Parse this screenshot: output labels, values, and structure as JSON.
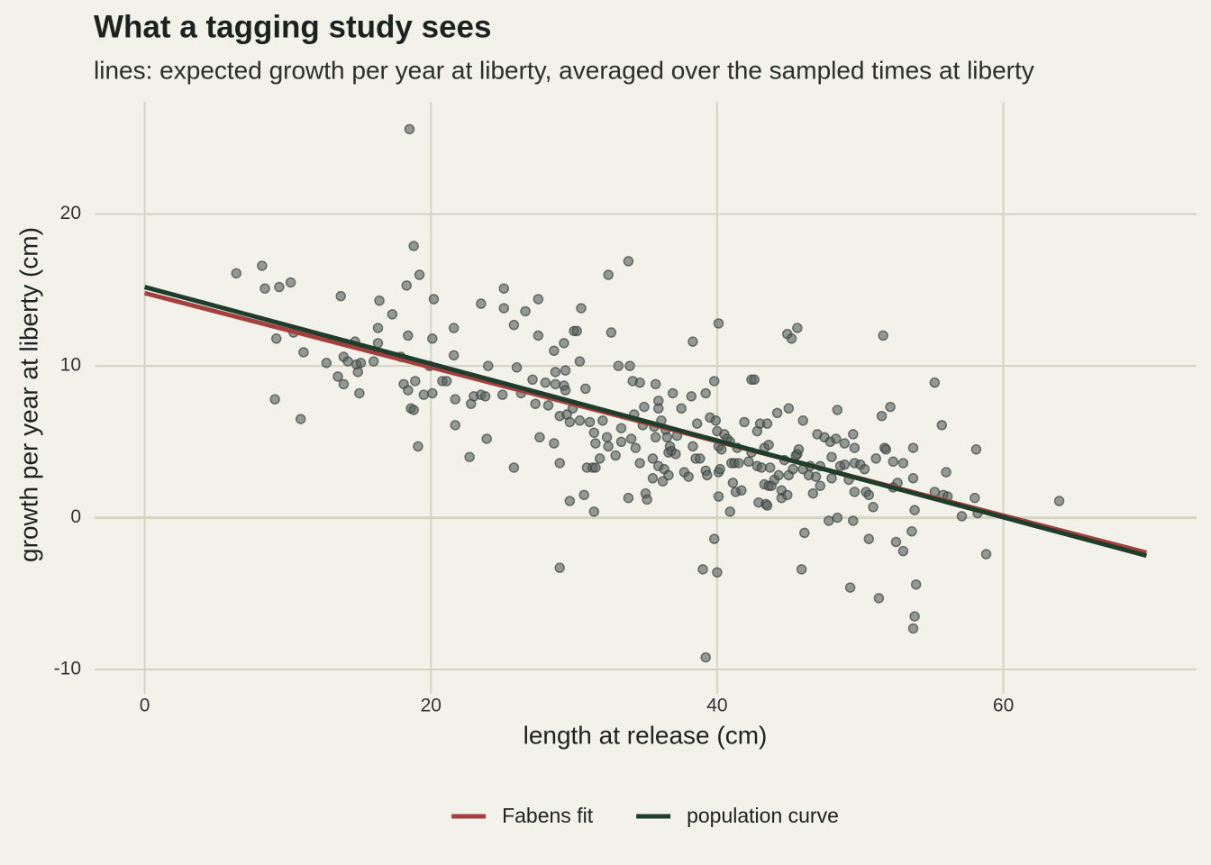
{
  "chart_data": {
    "type": "scatter",
    "title": "What a tagging study sees",
    "subtitle": "lines: expected growth per year at liberty, averaged over the sampled times at liberty",
    "x_label": "length at release (cm)",
    "y_label": "growth per year at liberty (cm)",
    "xlim": [
      -3.5,
      73.5
    ],
    "ylim": [
      -11.6,
      27.4
    ],
    "xticks": [
      0,
      20,
      40,
      60
    ],
    "yticks": [
      -10,
      0,
      10,
      20
    ],
    "grid": true,
    "legend": "bottom",
    "point_color": "#555f58",
    "x": [
      6.4,
      8.2,
      8.4,
      9.4,
      10.2,
      9.2,
      9.1,
      10.4,
      11.1,
      10.9,
      12.7,
      13.7,
      13.9,
      13.5,
      13.9,
      14.2,
      14.7,
      14.8,
      14.9,
      15.1,
      15.0,
      16.0,
      16.3,
      16.3,
      16.4,
      17.3,
      17.9,
      18.1,
      18.3,
      18.4,
      18.4,
      18.5,
      18.8,
      18.6,
      18.8,
      18.9,
      19.1,
      19.2,
      19.5,
      19.9,
      20.1,
      20.2,
      20.1,
      20.8,
      21.1,
      21.6,
      21.6,
      21.7,
      21.7,
      22.7,
      22.8,
      23.0,
      23.5,
      23.5,
      23.8,
      24.0,
      23.9,
      25.0,
      25.1,
      25.1,
      25.8,
      25.8,
      26.0,
      26.3,
      26.6,
      27.1,
      27.3,
      27.5,
      27.5,
      27.6,
      28.0,
      28.2,
      28.6,
      28.7,
      28.7,
      28.6,
      29.0,
      29.0,
      29.0,
      29.3,
      29.4,
      29.3,
      29.4,
      29.5,
      29.7,
      30.0,
      29.9,
      30.2,
      30.4,
      30.4,
      30.5,
      29.7,
      30.7,
      30.8,
      31.1,
      30.9,
      31.3,
      31.5,
      31.4,
      31.5,
      31.4,
      31.8,
      32.0,
      32.3,
      32.4,
      32.4,
      32.6,
      32.9,
      33.1,
      33.3,
      33.3,
      33.9,
      33.8,
      33.8,
      34.0,
      34.1,
      34.2,
      34.3,
      34.6,
      34.6,
      34.8,
      34.9,
      35.0,
      35.1,
      35.5,
      35.5,
      35.6,
      35.7,
      35.7,
      35.9,
      35.9,
      35.9,
      36.1,
      36.3,
      36.2,
      36.4,
      36.5,
      36.6,
      36.7,
      36.6,
      36.8,
      36.9,
      37.1,
      37.2,
      37.5,
      37.7,
      38.0,
      38.2,
      38.3,
      38.3,
      38.5,
      38.6,
      38.8,
      39.0,
      39.2,
      39.2,
      39.2,
      39.3,
      39.5,
      39.8,
      39.8,
      39.9,
      40.0,
      40.1,
      40.0,
      40.1,
      40.1,
      40.1,
      40.2,
      40.3,
      40.5,
      40.7,
      40.9,
      40.9,
      41.0,
      41.1,
      41.2,
      41.3,
      41.4,
      41.5,
      41.7,
      41.9,
      42.2,
      42.4,
      42.4,
      42.6,
      42.8,
      42.8,
      42.9,
      43.0,
      43.1,
      43.3,
      43.3,
      43.4,
      43.5,
      43.5,
      43.6,
      43.7,
      43.6,
      43.8,
      44.0,
      44.2,
      44.3,
      44.5,
      44.5,
      44.7,
      44.9,
      44.9,
      45.0,
      45.0,
      45.2,
      45.3,
      45.5,
      45.6,
      45.6,
      45.7,
      45.9,
      46.0,
      46.0,
      46.1,
      46.4,
      46.5,
      46.7,
      46.9,
      47.0,
      47.2,
      47.2,
      47.5,
      47.8,
      47.9,
      48.0,
      48.0,
      48.3,
      48.4,
      48.4,
      48.6,
      48.9,
      48.9,
      49.2,
      49.3,
      49.5,
      49.5,
      49.6,
      49.6,
      49.6,
      50.0,
      50.3,
      50.4,
      50.6,
      50.6,
      50.9,
      51.1,
      51.3,
      51.5,
      51.6,
      51.7,
      51.8,
      52.1,
      52.3,
      52.3,
      52.5,
      52.6,
      53.0,
      53.0,
      53.6,
      53.7,
      53.7,
      53.8,
      53.7,
      53.8,
      53.9,
      55.2,
      55.2,
      55.7,
      55.8,
      56.0,
      56.1,
      57.1,
      58.0,
      58.1,
      58.2,
      58.8,
      63.9
    ],
    "y": [
      16.1,
      16.6,
      15.1,
      15.2,
      15.5,
      11.8,
      7.8,
      12.2,
      10.9,
      6.5,
      10.2,
      14.6,
      10.6,
      9.3,
      8.8,
      10.3,
      11.6,
      10.1,
      9.6,
      10.2,
      8.2,
      10.3,
      12.5,
      11.5,
      14.3,
      13.4,
      10.6,
      8.8,
      15.3,
      12.0,
      8.4,
      25.6,
      17.9,
      7.2,
      7.1,
      9.0,
      4.7,
      16.0,
      8.1,
      10.0,
      11.8,
      14.4,
      8.2,
      9.0,
      9.0,
      12.5,
      10.7,
      7.8,
      6.1,
      4.0,
      7.5,
      8.0,
      14.1,
      8.1,
      8.0,
      10.0,
      5.2,
      8.1,
      15.1,
      13.8,
      12.7,
      3.3,
      9.9,
      8.2,
      13.6,
      9.1,
      7.5,
      14.4,
      12.0,
      5.3,
      8.9,
      7.4,
      11.0,
      9.6,
      8.8,
      4.9,
      6.7,
      3.6,
      -3.3,
      11.5,
      9.7,
      8.7,
      8.4,
      6.8,
      6.3,
      12.3,
      7.2,
      12.3,
      10.3,
      6.4,
      13.8,
      1.1,
      1.5,
      8.5,
      6.3,
      3.3,
      3.3,
      3.3,
      5.6,
      4.9,
      0.4,
      3.9,
      6.4,
      5.3,
      4.7,
      16.0,
      12.2,
      4.1,
      10.0,
      5.9,
      5.0,
      10.0,
      16.9,
      1.3,
      5.2,
      9.0,
      6.8,
      4.6,
      8.9,
      3.6,
      6.1,
      7.3,
      1.6,
      1.2,
      3.9,
      2.6,
      6.0,
      8.8,
      5.3,
      7.7,
      7.2,
      3.4,
      6.4,
      3.2,
      2.4,
      5.8,
      5.3,
      4.3,
      4.7,
      2.8,
      4.4,
      8.2,
      4.2,
      5.4,
      7.2,
      3.0,
      2.7,
      8.0,
      4.7,
      11.6,
      3.9,
      6.2,
      3.9,
      -3.4,
      -9.2,
      8.2,
      3.1,
      2.8,
      6.6,
      9.0,
      -1.4,
      6.4,
      -3.6,
      12.8,
      5.7,
      4.7,
      3.0,
      1.4,
      3.2,
      4.5,
      5.5,
      5.2,
      0.4,
      5.0,
      3.6,
      2.3,
      3.6,
      1.7,
      4.6,
      3.6,
      1.8,
      6.3,
      3.7,
      4.3,
      9.1,
      9.1,
      3.4,
      5.7,
      1.0,
      6.2,
      3.3,
      2.2,
      4.6,
      0.9,
      6.2,
      0.8,
      4.8,
      3.3,
      2.1,
      2.1,
      2.5,
      6.9,
      2.8,
      1.3,
      1.8,
      3.8,
      12.1,
      1.5,
      2.8,
      7.2,
      11.8,
      3.2,
      4.1,
      12.5,
      4.2,
      4.5,
      -3.4,
      6.4,
      3.2,
      -1.0,
      2.8,
      3.4,
      1.6,
      2.7,
      5.5,
      3.4,
      2.1,
      5.3,
      -0.2,
      5.0,
      4.0,
      2.6,
      5.2,
      7.1,
      0.0,
      3.4,
      3.5,
      4.9,
      2.5,
      -4.6,
      -0.2,
      5.5,
      1.7,
      4.6,
      3.6,
      3.5,
      3.2,
      1.7,
      -1.4,
      1.5,
      0.7,
      3.9,
      -5.3,
      6.7,
      12.0,
      4.6,
      4.5,
      7.3,
      3.7,
      2.0,
      -1.6,
      2.3,
      3.6,
      -2.2,
      -0.9,
      2.6,
      4.6,
      0.5,
      -7.3,
      -6.5,
      -4.4,
      8.9,
      1.7,
      6.1,
      1.5,
      3.0,
      1.4,
      0.1,
      1.3,
      4.5,
      0.3,
      -2.4,
      1.1
    ],
    "series": [
      {
        "name": "Fabens fit",
        "color": "#a33f3f",
        "x": [
          0,
          70
        ],
        "values": [
          14.8,
          -2.3
        ]
      },
      {
        "name": "population curve",
        "color": "#1f3d2b",
        "x": [
          0,
          70
        ],
        "values": [
          15.2,
          -2.5
        ]
      }
    ]
  }
}
